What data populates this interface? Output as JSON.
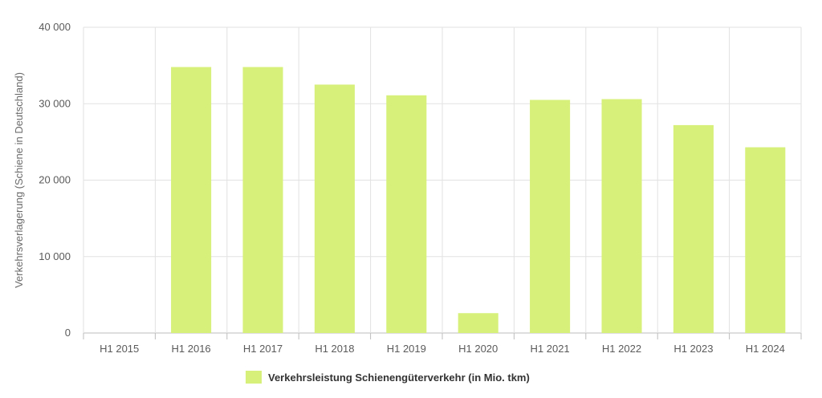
{
  "chart_data": {
    "type": "bar",
    "categories": [
      "H1 2015",
      "H1 2016",
      "H1 2017",
      "H1 2018",
      "H1 2019",
      "H1 2020",
      "H1 2021",
      "H1 2022",
      "H1 2023",
      "H1 2024"
    ],
    "series": [
      {
        "name": "Verkehrsleistung Schienengüterverkehr (in Mio. tkm)",
        "color": "#d6f07a",
        "values": [
          0,
          34800,
          34800,
          32500,
          31100,
          2600,
          30500,
          30600,
          27200,
          24300
        ]
      }
    ],
    "ylabel": "Verkehrsverlagerung (Schiene in Deutschland)",
    "xlabel": "",
    "ylim": [
      0,
      40000
    ],
    "yticks": [
      0,
      10000,
      20000,
      30000,
      40000
    ],
    "ytick_labels": [
      "0",
      "10 000",
      "20 000",
      "30 000",
      "40 000"
    ],
    "grid": true,
    "legend": "bottom-center"
  }
}
